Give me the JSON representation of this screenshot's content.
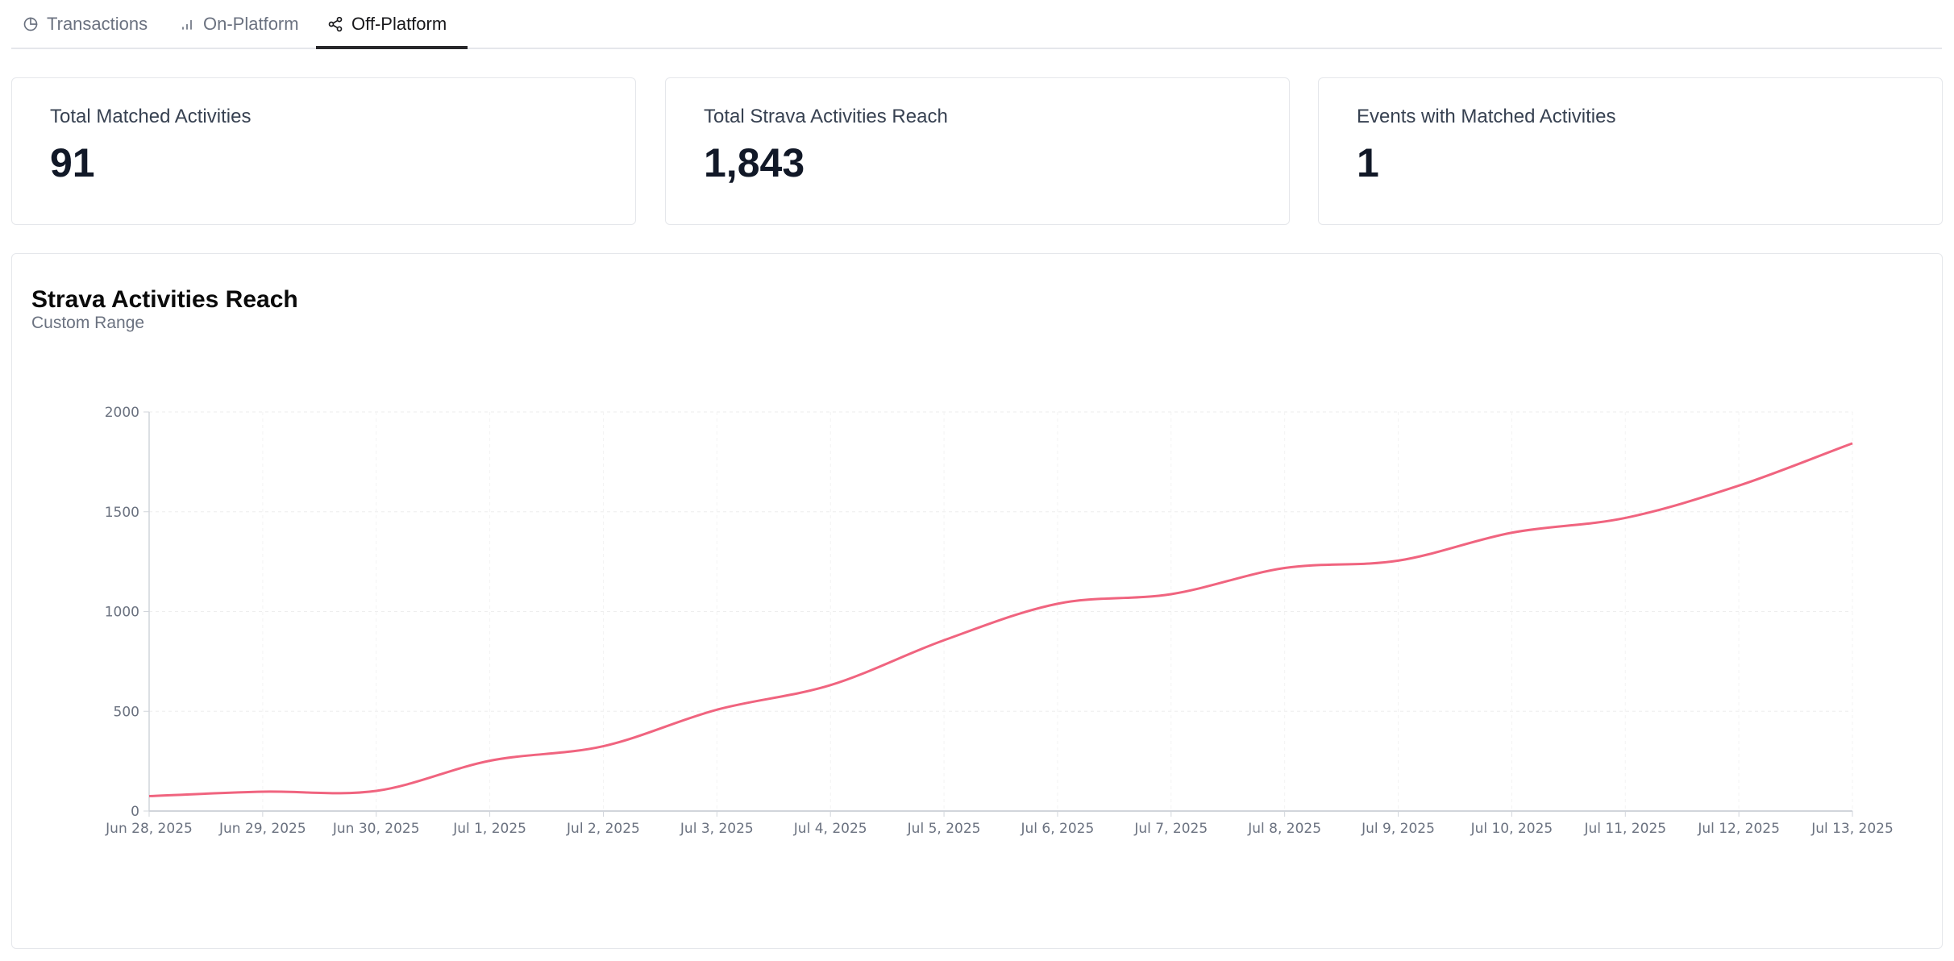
{
  "tabs": [
    {
      "label": "Transactions",
      "icon": "pie-chart-icon",
      "active": false
    },
    {
      "label": "On-Platform",
      "icon": "bar-chart-icon",
      "active": false
    },
    {
      "label": "Off-Platform",
      "icon": "share-icon",
      "active": true
    }
  ],
  "stats": [
    {
      "label": "Total Matched Activities",
      "value": "91"
    },
    {
      "label": "Total Strava Activities Reach",
      "value": "1,843"
    },
    {
      "label": "Events with Matched Activities",
      "value": "1"
    }
  ],
  "chart": {
    "title": "Strava Activities Reach",
    "subtitle": "Custom Range"
  },
  "chart_data": {
    "type": "line",
    "title": "Strava Activities Reach",
    "subtitle": "Custom Range",
    "xlabel": "",
    "ylabel": "",
    "categories": [
      "Jun 28, 2025",
      "Jun 29, 2025",
      "Jun 30, 2025",
      "Jul 1, 2025",
      "Jul 2, 2025",
      "Jul 3, 2025",
      "Jul 4, 2025",
      "Jul 5, 2025",
      "Jul 6, 2025",
      "Jul 7, 2025",
      "Jul 8, 2025",
      "Jul 9, 2025",
      "Jul 10, 2025",
      "Jul 11, 2025",
      "Jul 12, 2025",
      "Jul 13, 2025"
    ],
    "values": [
      75,
      97,
      101,
      252,
      325,
      508,
      631,
      856,
      1039,
      1087,
      1218,
      1255,
      1395,
      1469,
      1631,
      1843
    ],
    "ylim": [
      0,
      2000
    ],
    "yticks": [
      0,
      500,
      1000,
      1500,
      2000
    ],
    "grid": true,
    "line_color": "#f0647f",
    "smooth": true
  }
}
